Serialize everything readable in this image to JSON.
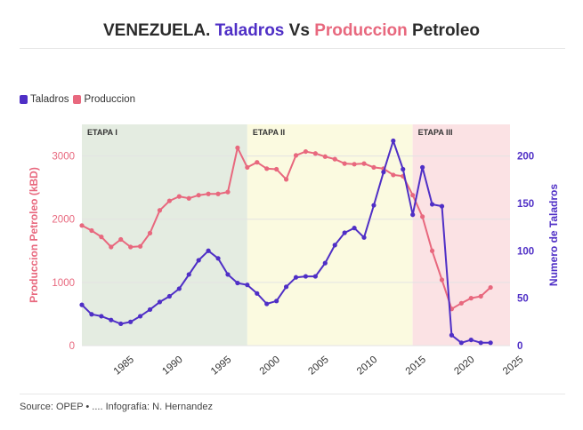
{
  "title": {
    "part1": "VENEZUELA. ",
    "part2": "Taladros",
    "part3": " Vs ",
    "part4": "Produccion",
    "part5": " Petroleo"
  },
  "colors": {
    "taladros": "#4f2fc6",
    "produccion": "#e8687e",
    "etapa1": "#e4ece1",
    "etapa2": "#fbfae0",
    "etapa3": "#fbe2e4",
    "grid": "#e3e3e3"
  },
  "legend": {
    "taladros": "Taladros",
    "produccion": "Produccion"
  },
  "source": "Source: OPEP • .... Infografía: N. Hernandez",
  "chart_data": {
    "type": "line",
    "title": "VENEZUELA. Taladros Vs Produccion Petroleo",
    "xlabel": "",
    "ylabel_left": "Produccion Petroleo (kBD)",
    "ylabel_right": "Numero de Taladros",
    "xlim": [
      1981,
      2025
    ],
    "ylim_left": [
      0,
      3500
    ],
    "ylim_right": [
      0,
      233.3
    ],
    "x_ticks": [
      1985,
      1990,
      1995,
      2000,
      2005,
      2010,
      2015,
      2020,
      2025
    ],
    "y_ticks_left": [
      0,
      1000,
      2000,
      3000
    ],
    "y_ticks_right": [
      0,
      50,
      100,
      150,
      200
    ],
    "etapas": [
      {
        "label": "ETAPA I",
        "start": 1981,
        "end": 1998
      },
      {
        "label": "ETAPA II",
        "start": 1998,
        "end": 2015
      },
      {
        "label": "ETAPA III",
        "start": 2015,
        "end": 2025
      }
    ],
    "series": [
      {
        "name": "Produccion",
        "axis": "left",
        "points": [
          [
            1981,
            1900
          ],
          [
            1982,
            1820
          ],
          [
            1983,
            1720
          ],
          [
            1984,
            1560
          ],
          [
            1985,
            1680
          ],
          [
            1986,
            1560
          ],
          [
            1987,
            1570
          ],
          [
            1988,
            1780
          ],
          [
            1989,
            2140
          ],
          [
            1990,
            2290
          ],
          [
            1991,
            2360
          ],
          [
            1992,
            2330
          ],
          [
            1993,
            2380
          ],
          [
            1994,
            2400
          ],
          [
            1995,
            2400
          ],
          [
            1996,
            2430
          ],
          [
            1997,
            3130
          ],
          [
            1998,
            2820
          ],
          [
            1999,
            2900
          ],
          [
            2000,
            2800
          ],
          [
            2001,
            2790
          ],
          [
            2002,
            2630
          ],
          [
            2003,
            3010
          ],
          [
            2004,
            3070
          ],
          [
            2005,
            3040
          ],
          [
            2006,
            2990
          ],
          [
            2007,
            2950
          ],
          [
            2008,
            2880
          ],
          [
            2009,
            2870
          ],
          [
            2010,
            2880
          ],
          [
            2011,
            2820
          ],
          [
            2012,
            2800
          ],
          [
            2013,
            2700
          ],
          [
            2014,
            2680
          ],
          [
            2015,
            2380
          ],
          [
            2016,
            2040
          ],
          [
            2017,
            1500
          ],
          [
            2018,
            1040
          ],
          [
            2019,
            580
          ],
          [
            2020,
            670
          ],
          [
            2021,
            750
          ],
          [
            2022,
            780
          ],
          [
            2023,
            920
          ]
        ]
      },
      {
        "name": "Taladros",
        "axis": "right",
        "points": [
          [
            1981,
            43
          ],
          [
            1982,
            33
          ],
          [
            1983,
            31
          ],
          [
            1984,
            27
          ],
          [
            1985,
            23
          ],
          [
            1986,
            25
          ],
          [
            1987,
            31
          ],
          [
            1988,
            38
          ],
          [
            1989,
            46
          ],
          [
            1990,
            52
          ],
          [
            1991,
            60
          ],
          [
            1992,
            75
          ],
          [
            1993,
            90
          ],
          [
            1994,
            100
          ],
          [
            1995,
            92
          ],
          [
            1996,
            75
          ],
          [
            1997,
            66
          ],
          [
            1998,
            64
          ],
          [
            1999,
            55
          ],
          [
            2000,
            44
          ],
          [
            2001,
            47
          ],
          [
            2002,
            62
          ],
          [
            2003,
            72
          ],
          [
            2004,
            73
          ],
          [
            2005,
            73
          ],
          [
            2006,
            87
          ],
          [
            2007,
            106
          ],
          [
            2008,
            119
          ],
          [
            2009,
            124
          ],
          [
            2010,
            114
          ],
          [
            2011,
            148
          ],
          [
            2012,
            183
          ],
          [
            2013,
            216
          ],
          [
            2014,
            186
          ],
          [
            2015,
            138
          ],
          [
            2016,
            188
          ],
          [
            2017,
            149
          ],
          [
            2018,
            147
          ],
          [
            2019,
            11
          ],
          [
            2020,
            3
          ],
          [
            2021,
            6
          ],
          [
            2022,
            3
          ],
          [
            2023,
            3
          ]
        ]
      }
    ]
  }
}
